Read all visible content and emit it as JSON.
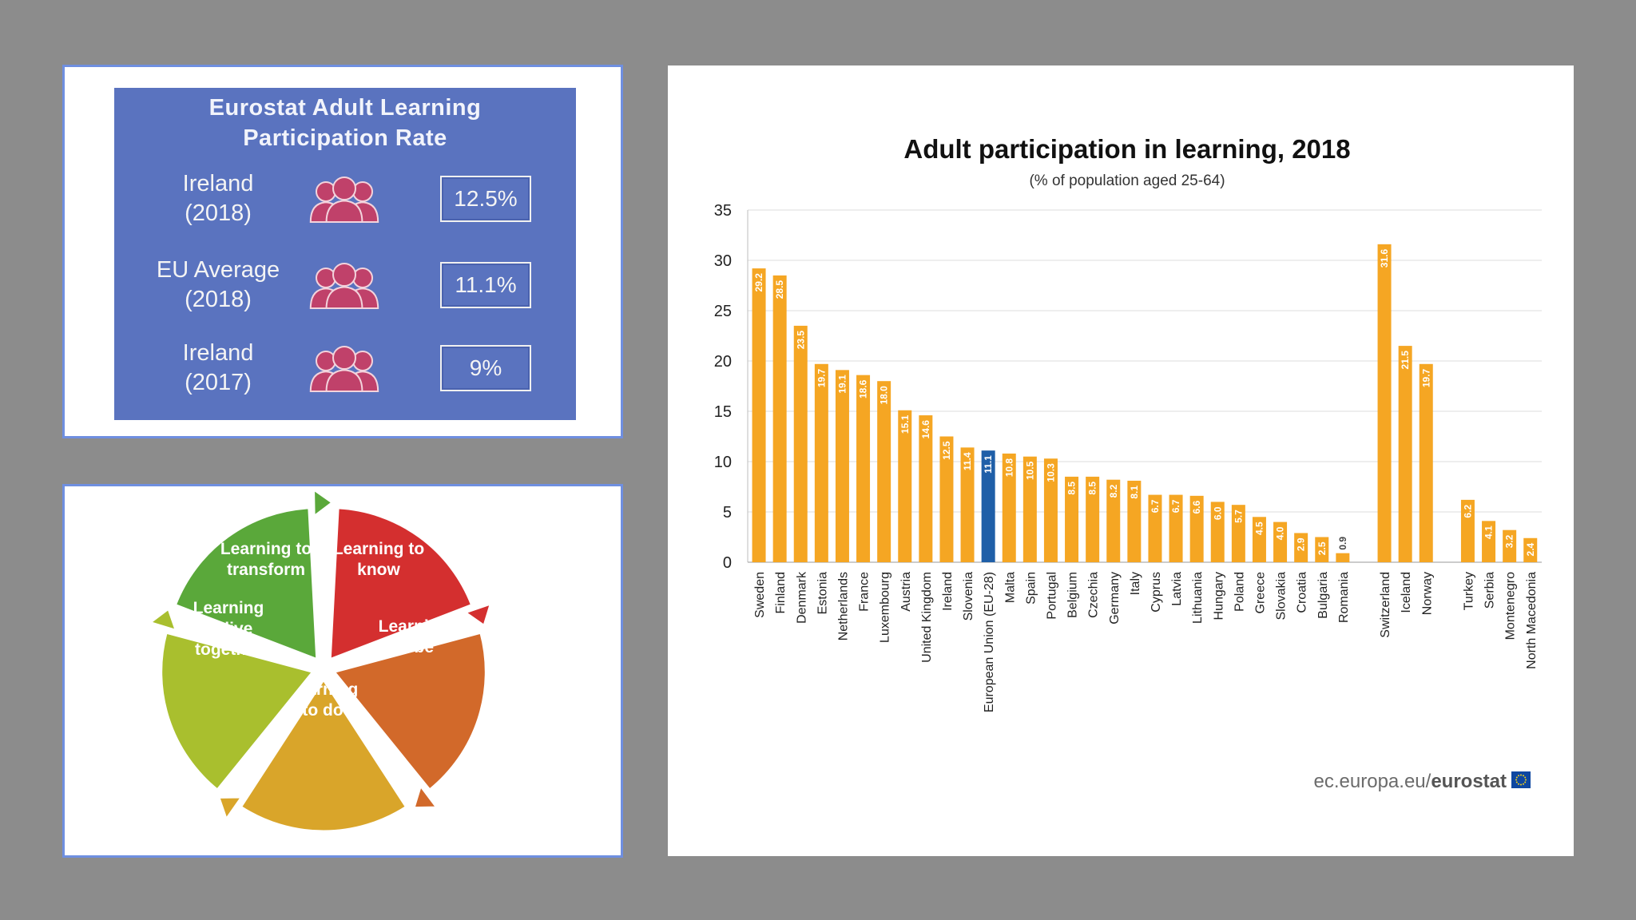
{
  "stats_panel": {
    "title_line1": "Eurostat Adult Learning",
    "title_line2": "Participation Rate",
    "rows": [
      {
        "label_line1": "Ireland",
        "label_line2": "(2018)",
        "value": "12.5%",
        "icon": "people-group-icon"
      },
      {
        "label_line1": "EU Average",
        "label_line2": "(2018)",
        "value": "11.1%",
        "icon": "people-group-icon"
      },
      {
        "label_line1": "Ireland",
        "label_line2": "(2017)",
        "value": "9%",
        "icon": "people-group-icon"
      }
    ],
    "colors": {
      "panel": "#5a73bf",
      "icon": "#c0416a"
    }
  },
  "learning_wheel": {
    "segments": [
      {
        "line1": "Learning to",
        "line2": "transform",
        "color": "#5aa83a"
      },
      {
        "line1": "Learning to",
        "line2": "know",
        "color": "#d42f2f"
      },
      {
        "line1": "Learning",
        "line2": "to be",
        "color": "#d2692a"
      },
      {
        "line1": "Learning",
        "line2": "to do",
        "color": "#d9a52a"
      },
      {
        "line1": "Learning",
        "line2": "to live",
        "line3": "together",
        "color": "#a9bf2e"
      }
    ]
  },
  "chart_data": {
    "type": "bar",
    "title": "Adult participation in learning, 2018",
    "subtitle": "(% of population aged 25-64)",
    "xlabel": "",
    "ylabel": "",
    "ylim": [
      0,
      35
    ],
    "yticks": [
      "0",
      "5",
      "10",
      "15",
      "20",
      "25",
      "30",
      "35"
    ],
    "grid": true,
    "groups": [
      {
        "categories": [
          "Sweden",
          "Finland",
          "Denmark",
          "Estonia",
          "Netherlands",
          "France",
          "Luxembourg",
          "Austria",
          "United Kingdom",
          "Ireland",
          "Slovenia",
          "European Union (EU-28)",
          "Malta",
          "Spain",
          "Portugal",
          "Belgium",
          "Czechia",
          "Germany",
          "Italy",
          "Cyprus",
          "Latvia",
          "Lithuania",
          "Hungary",
          "Poland",
          "Greece",
          "Slovakia",
          "Croatia",
          "Bulgaria",
          "Romania"
        ],
        "values": [
          29.2,
          28.5,
          23.5,
          19.7,
          19.1,
          18.6,
          18.0,
          15.1,
          14.6,
          12.5,
          11.4,
          11.1,
          10.8,
          10.5,
          10.3,
          8.5,
          8.5,
          8.2,
          8.1,
          6.7,
          6.7,
          6.6,
          6.0,
          5.7,
          4.5,
          4.0,
          2.9,
          2.5,
          0.9
        ],
        "labels": [
          "29.2",
          "28.5",
          "23.5",
          "19.7",
          "19.1",
          "18.6",
          "18.0",
          "15.1",
          "14.6",
          "12.5",
          "11.4",
          "11.1",
          "10.8",
          "10.5",
          "10.3",
          "8.5",
          "8.5",
          "8.2",
          "8.1",
          "6.7",
          "6.7",
          "6.6",
          "6.0",
          "5.7",
          "4.5",
          "4.0",
          "2.9",
          "2.5",
          "0.9"
        ]
      },
      {
        "categories": [
          "Switzerland",
          "Iceland",
          "Norway"
        ],
        "values": [
          31.6,
          21.5,
          19.7
        ],
        "labels": [
          "31.6",
          "21.5",
          "19.7"
        ]
      },
      {
        "categories": [
          "Turkey",
          "Serbia",
          "Montenegro",
          "North Macedonia"
        ],
        "values": [
          6.2,
          4.1,
          3.2,
          2.4
        ],
        "labels": [
          "6.2",
          "4.1",
          "3.2",
          "2.4"
        ]
      }
    ],
    "highlight_category": "European Union (EU-28)",
    "bar_color": "#f5a623",
    "highlight_color": "#1f5fa8",
    "source_prefix": "ec.europa.eu/",
    "source_brand": "eurostat",
    "flag_icon": "eu-flag-icon",
    "flag_color": "#0e47a1"
  }
}
